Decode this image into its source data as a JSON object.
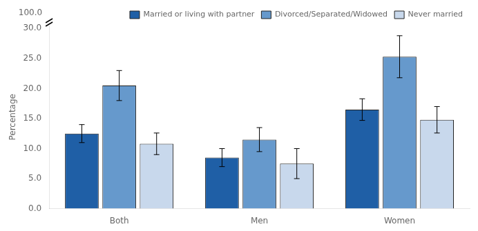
{
  "chart_data": {
    "type": "bar",
    "categories": [
      "Both",
      "Men",
      "Women"
    ],
    "series": [
      {
        "name": "Married or living with partner",
        "color": "#1f5fa6",
        "values": [
          12.5,
          8.5,
          16.5
        ],
        "errors": [
          1.5,
          1.5,
          1.8
        ]
      },
      {
        "name": "Divorced/Separated/Widowed",
        "color": "#6699cc",
        "values": [
          20.5,
          11.5,
          25.3
        ],
        "errors": [
          2.5,
          2.0,
          3.5
        ]
      },
      {
        "name": "Never married",
        "color": "#c8d8ec",
        "values": [
          10.8,
          7.5,
          14.8
        ],
        "errors": [
          1.8,
          2.5,
          2.2
        ]
      }
    ],
    "ylabel": "Percentage",
    "ylim": [
      0,
      30.5
    ],
    "yticks": [
      {
        "value": 0,
        "label": "0.0"
      },
      {
        "value": 5,
        "label": "5.0"
      },
      {
        "value": 10,
        "label": "10.0"
      },
      {
        "value": 15,
        "label": "15.0"
      },
      {
        "value": 20,
        "label": "20.0"
      },
      {
        "value": 25,
        "label": "25.0"
      },
      {
        "value": 30,
        "label": "30.0"
      }
    ],
    "annotations": [
      "100.0"
    ],
    "grid": false
  }
}
